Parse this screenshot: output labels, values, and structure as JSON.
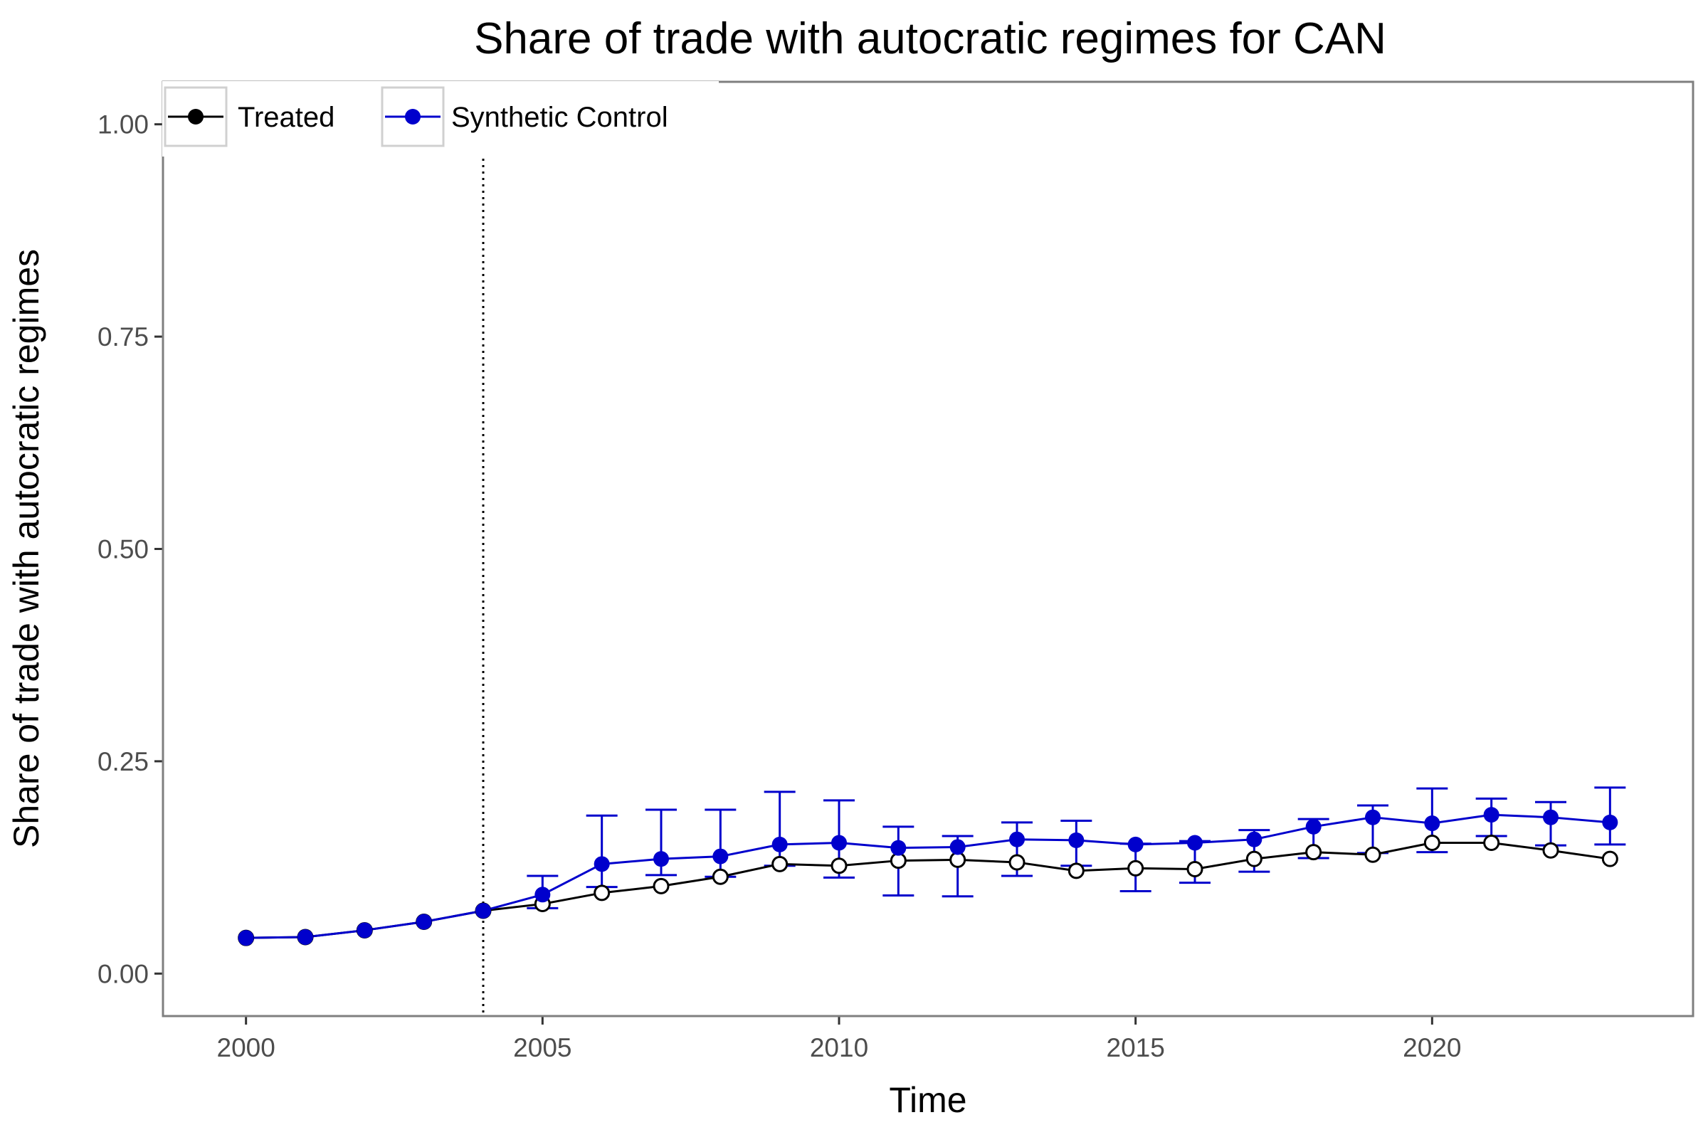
{
  "chart_data": {
    "type": "line",
    "title": "Share of trade with autocratic regimes for CAN",
    "xlabel": "Time",
    "ylabel": "Share of trade with autocratic regimes",
    "xlim": [
      1998.6,
      2024.4
    ],
    "ylim": [
      -0.05,
      1.05
    ],
    "x_ticks": [
      2000,
      2005,
      2010,
      2015,
      2020
    ],
    "x_tick_labels": [
      "2000",
      "2005",
      "2010",
      "2015",
      "2020"
    ],
    "y_ticks": [
      0,
      0.25,
      0.5,
      0.75,
      1.0
    ],
    "y_tick_labels": [
      "0.00",
      "0.25",
      "0.50",
      "0.75",
      "1.00"
    ],
    "treatment_year": 2004,
    "grid": false,
    "legend_position": "top-left",
    "x": [
      2000,
      2001,
      2002,
      2003,
      2004,
      2005,
      2006,
      2007,
      2008,
      2009,
      2010,
      2011,
      2012,
      2013,
      2014,
      2015,
      2016,
      2017,
      2018,
      2019,
      2020,
      2021,
      2022,
      2023
    ],
    "series": [
      {
        "name": "Treated",
        "color": "#000000",
        "marker": "open-circle",
        "values": [
          0.042,
          0.043,
          0.051,
          0.061,
          0.074,
          0.082,
          0.095,
          0.103,
          0.114,
          0.129,
          0.127,
          0.133,
          0.134,
          0.131,
          0.121,
          0.124,
          0.123,
          0.135,
          0.143,
          0.14,
          0.154,
          0.154,
          0.145,
          0.135
        ]
      },
      {
        "name": "Synthetic Control",
        "color": "#0000cc",
        "marker": "filled-circle",
        "values": [
          0.042,
          0.043,
          0.051,
          0.061,
          0.074,
          0.093,
          0.129,
          0.135,
          0.138,
          0.152,
          0.154,
          0.148,
          0.149,
          0.158,
          0.157,
          0.152,
          0.154,
          0.158,
          0.173,
          0.184,
          0.177,
          0.187,
          0.184,
          0.178
        ],
        "error_lower": [
          null,
          null,
          null,
          null,
          null,
          0.077,
          0.102,
          0.116,
          0.114,
          0.127,
          0.113,
          0.092,
          0.091,
          0.115,
          0.127,
          0.097,
          0.107,
          0.12,
          0.136,
          0.142,
          0.143,
          0.162,
          0.151,
          0.152
        ],
        "error_upper": [
          null,
          null,
          null,
          null,
          null,
          0.115,
          0.186,
          0.193,
          0.193,
          0.214,
          0.204,
          0.173,
          0.162,
          0.178,
          0.18,
          0.153,
          0.156,
          0.169,
          0.182,
          0.198,
          0.218,
          0.206,
          0.202,
          0.219
        ]
      }
    ]
  }
}
